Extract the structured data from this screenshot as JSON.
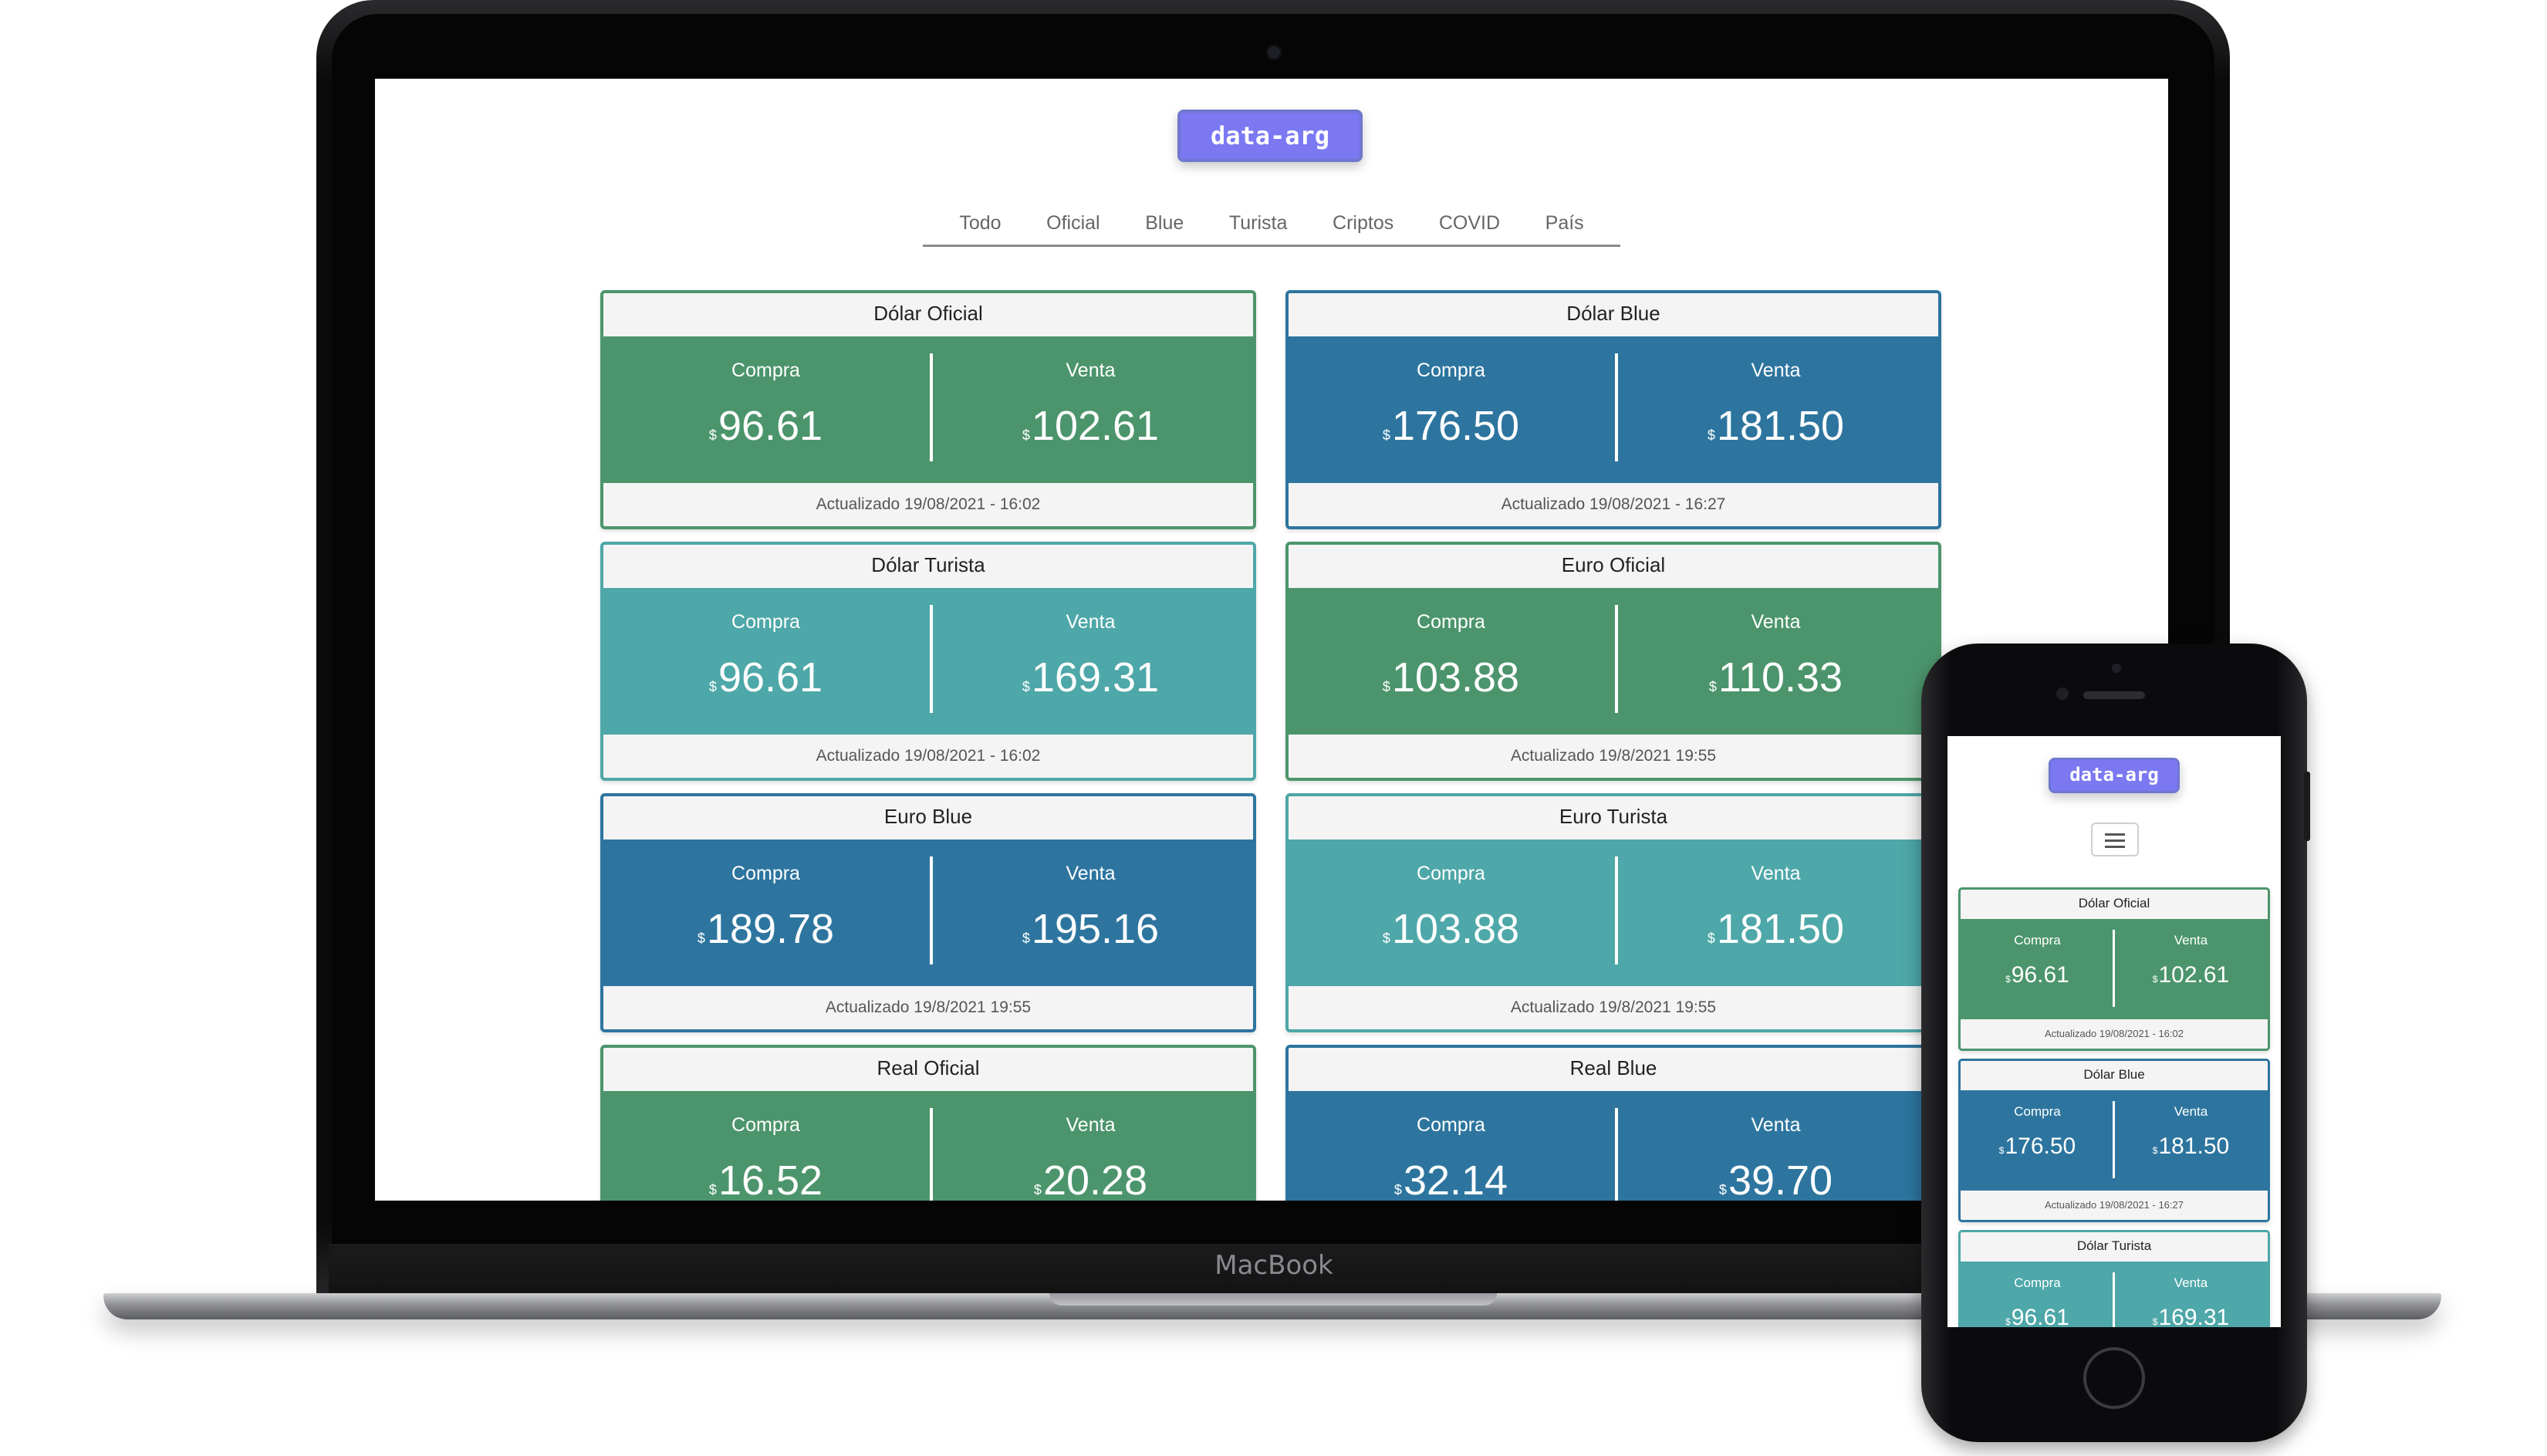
{
  "brand": {
    "logo_text": "data-arg",
    "laptop_label": "MacBook"
  },
  "nav": {
    "items": [
      "Todo",
      "Oficial",
      "Blue",
      "Turista",
      "Criptos",
      "COVID",
      "País"
    ]
  },
  "labels": {
    "buy": "Compra",
    "sell": "Venta",
    "currency_symbol": "$"
  },
  "cards": [
    {
      "title": "Dólar Oficial",
      "buy": "96.61",
      "sell": "102.61",
      "updated": "Actualizado 19/08/2021 - 16:02",
      "theme": "green"
    },
    {
      "title": "Dólar Blue",
      "buy": "176.50",
      "sell": "181.50",
      "updated": "Actualizado 19/08/2021 - 16:27",
      "theme": "blue"
    },
    {
      "title": "Dólar Turista",
      "buy": "96.61",
      "sell": "169.31",
      "updated": "Actualizado 19/08/2021 - 16:02",
      "theme": "teal"
    },
    {
      "title": "Euro Oficial",
      "buy": "103.88",
      "sell": "110.33",
      "updated": "Actualizado 19/8/2021 19:55",
      "theme": "green"
    },
    {
      "title": "Euro Blue",
      "buy": "189.78",
      "sell": "195.16",
      "updated": "Actualizado 19/8/2021 19:55",
      "theme": "blue"
    },
    {
      "title": "Euro Turista",
      "buy": "103.88",
      "sell": "181.50",
      "updated": "Actualizado 19/8/2021 19:55",
      "theme": "teal"
    },
    {
      "title": "Real Oficial",
      "buy": "16.52",
      "sell": "20.28",
      "updated": "",
      "theme": "green"
    },
    {
      "title": "Real Blue",
      "buy": "32.14",
      "sell": "39.70",
      "updated": "",
      "theme": "blue"
    }
  ],
  "colors": {
    "green": "#4c956c",
    "blue": "#2d759f",
    "teal": "#4ea7a8",
    "logo": "#7b78f2"
  },
  "icons": {
    "menu": "hamburger-menu-icon"
  }
}
